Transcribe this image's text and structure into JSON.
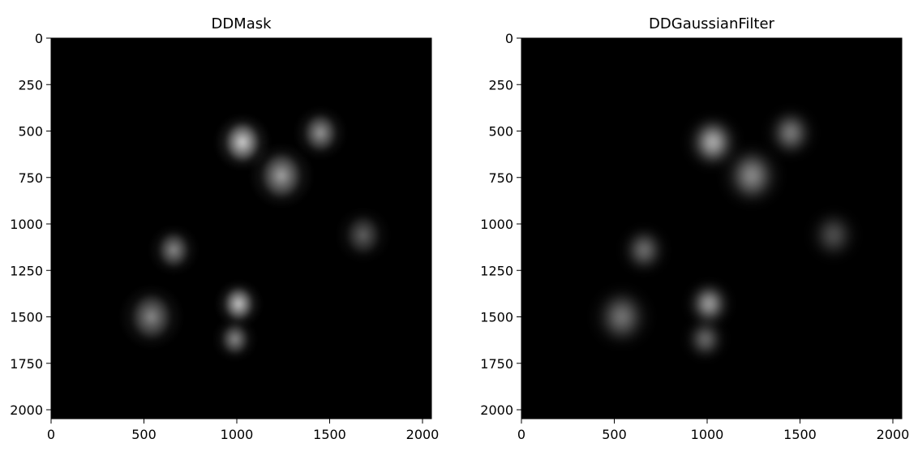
{
  "chart_data": [
    {
      "type": "heatmap",
      "title": "DDMask",
      "xlim": [
        0,
        2048
      ],
      "ylim": [
        2048,
        0
      ],
      "x_ticks": [
        0,
        500,
        1000,
        1500,
        2000
      ],
      "y_ticks": [
        0,
        250,
        500,
        750,
        1000,
        1250,
        1500,
        1750,
        2000
      ],
      "colormap": "gray",
      "background": "#000000",
      "blobs": [
        {
          "x": 1030,
          "y": 560,
          "intensity": 0.75
        },
        {
          "x": 1240,
          "y": 740,
          "intensity": 0.55
        },
        {
          "x": 1450,
          "y": 510,
          "intensity": 0.5
        },
        {
          "x": 1680,
          "y": 1060,
          "intensity": 0.3
        },
        {
          "x": 660,
          "y": 1140,
          "intensity": 0.45
        },
        {
          "x": 540,
          "y": 1500,
          "intensity": 0.45
        },
        {
          "x": 1010,
          "y": 1430,
          "intensity": 0.7
        },
        {
          "x": 990,
          "y": 1620,
          "intensity": 0.45
        }
      ]
    },
    {
      "type": "heatmap",
      "title": "DDGaussianFilter",
      "xlim": [
        0,
        2048
      ],
      "ylim": [
        2048,
        0
      ],
      "x_ticks": [
        0,
        500,
        1000,
        1500,
        2000
      ],
      "y_ticks": [
        0,
        250,
        500,
        750,
        1000,
        1250,
        1500,
        1750,
        2000
      ],
      "colormap": "gray",
      "background": "#000000",
      "blobs": [
        {
          "x": 1030,
          "y": 560,
          "intensity": 0.75
        },
        {
          "x": 1240,
          "y": 740,
          "intensity": 0.55
        },
        {
          "x": 1450,
          "y": 510,
          "intensity": 0.5
        },
        {
          "x": 1680,
          "y": 1060,
          "intensity": 0.3
        },
        {
          "x": 660,
          "y": 1140,
          "intensity": 0.45
        },
        {
          "x": 540,
          "y": 1500,
          "intensity": 0.45
        },
        {
          "x": 1010,
          "y": 1430,
          "intensity": 0.7
        },
        {
          "x": 990,
          "y": 1620,
          "intensity": 0.45
        }
      ]
    }
  ]
}
